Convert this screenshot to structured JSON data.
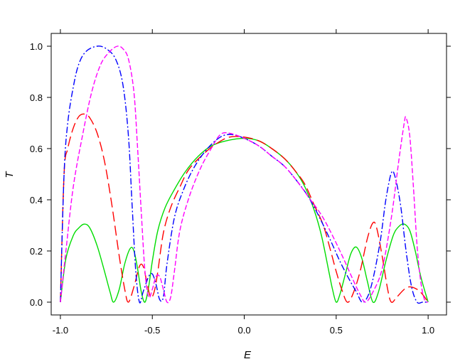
{
  "chart_data": {
    "type": "line",
    "title": "",
    "xlabel": "E",
    "ylabel": "T",
    "xlim": [
      -1.05,
      1.1
    ],
    "ylim": [
      -0.05,
      1.05
    ],
    "xticks": [
      -1.0,
      -0.5,
      0.0,
      0.5,
      1.0
    ],
    "xtick_labels": [
      "-1.0",
      "-0.5",
      "0.0",
      "0.5",
      "1.0"
    ],
    "yticks": [
      0.0,
      0.2,
      0.4,
      0.6,
      0.8,
      1.0
    ],
    "ytick_labels": [
      "0.0",
      "0.2",
      "0.4",
      "0.6",
      "0.8",
      "1.0"
    ],
    "grid": false,
    "legend": "none",
    "series": [
      {
        "color": "#00dd00",
        "dash": "solid",
        "points": [
          [
            -1.0,
            0.0
          ],
          [
            -0.97,
            0.17
          ],
          [
            -0.93,
            0.26
          ],
          [
            -0.9,
            0.29
          ],
          [
            -0.87,
            0.305
          ],
          [
            -0.84,
            0.29
          ],
          [
            -0.8,
            0.22
          ],
          [
            -0.76,
            0.12
          ],
          [
            -0.73,
            0.04
          ],
          [
            -0.71,
            0.0
          ],
          [
            -0.68,
            0.05
          ],
          [
            -0.65,
            0.15
          ],
          [
            -0.62,
            0.21
          ],
          [
            -0.6,
            0.2
          ],
          [
            -0.58,
            0.13
          ],
          [
            -0.56,
            0.04
          ],
          [
            -0.54,
            0.0
          ],
          [
            -0.52,
            0.06
          ],
          [
            -0.5,
            0.16
          ],
          [
            -0.47,
            0.28
          ],
          [
            -0.43,
            0.37
          ],
          [
            -0.38,
            0.44
          ],
          [
            -0.32,
            0.51
          ],
          [
            -0.25,
            0.57
          ],
          [
            -0.18,
            0.61
          ],
          [
            -0.1,
            0.63
          ],
          [
            0.0,
            0.64
          ],
          [
            0.08,
            0.63
          ],
          [
            0.15,
            0.6
          ],
          [
            0.22,
            0.56
          ],
          [
            0.28,
            0.51
          ],
          [
            0.33,
            0.45
          ],
          [
            0.38,
            0.36
          ],
          [
            0.42,
            0.26
          ],
          [
            0.46,
            0.12
          ],
          [
            0.48,
            0.05
          ],
          [
            0.5,
            0.0
          ],
          [
            0.52,
            0.03
          ],
          [
            0.55,
            0.11
          ],
          [
            0.58,
            0.19
          ],
          [
            0.61,
            0.215
          ],
          [
            0.64,
            0.17
          ],
          [
            0.67,
            0.08
          ],
          [
            0.7,
            0.0
          ],
          [
            0.73,
            0.04
          ],
          [
            0.77,
            0.16
          ],
          [
            0.81,
            0.26
          ],
          [
            0.84,
            0.295
          ],
          [
            0.87,
            0.305
          ],
          [
            0.9,
            0.28
          ],
          [
            0.93,
            0.2
          ],
          [
            0.96,
            0.1
          ],
          [
            1.0,
            0.0
          ]
        ]
      },
      {
        "color": "#ff0000",
        "dash": "long-dash",
        "points": [
          [
            -1.0,
            0.0
          ],
          [
            -0.98,
            0.5
          ],
          [
            -0.96,
            0.6
          ],
          [
            -0.93,
            0.68
          ],
          [
            -0.9,
            0.725
          ],
          [
            -0.87,
            0.735
          ],
          [
            -0.84,
            0.72
          ],
          [
            -0.8,
            0.66
          ],
          [
            -0.76,
            0.55
          ],
          [
            -0.72,
            0.38
          ],
          [
            -0.68,
            0.18
          ],
          [
            -0.65,
            0.05
          ],
          [
            -0.63,
            0.0
          ],
          [
            -0.6,
            0.06
          ],
          [
            -0.57,
            0.14
          ],
          [
            -0.55,
            0.14
          ],
          [
            -0.53,
            0.08
          ],
          [
            -0.51,
            0.02
          ],
          [
            -0.49,
            0.04
          ],
          [
            -0.47,
            0.12
          ],
          [
            -0.44,
            0.27
          ],
          [
            -0.4,
            0.37
          ],
          [
            -0.35,
            0.45
          ],
          [
            -0.3,
            0.52
          ],
          [
            -0.22,
            0.58
          ],
          [
            -0.15,
            0.62
          ],
          [
            -0.08,
            0.645
          ],
          [
            0.0,
            0.645
          ],
          [
            0.08,
            0.63
          ],
          [
            0.15,
            0.6
          ],
          [
            0.22,
            0.56
          ],
          [
            0.28,
            0.51
          ],
          [
            0.33,
            0.46
          ],
          [
            0.38,
            0.38
          ],
          [
            0.43,
            0.3
          ],
          [
            0.47,
            0.2
          ],
          [
            0.5,
            0.12
          ],
          [
            0.53,
            0.05
          ],
          [
            0.56,
            0.0
          ],
          [
            0.59,
            0.03
          ],
          [
            0.63,
            0.12
          ],
          [
            0.67,
            0.25
          ],
          [
            0.7,
            0.31
          ],
          [
            0.72,
            0.29
          ],
          [
            0.75,
            0.18
          ],
          [
            0.78,
            0.05
          ],
          [
            0.8,
            0.0
          ],
          [
            0.83,
            0.02
          ],
          [
            0.87,
            0.05
          ],
          [
            0.9,
            0.06
          ],
          [
            0.94,
            0.05
          ],
          [
            0.97,
            0.03
          ],
          [
            1.0,
            0.0
          ]
        ]
      },
      {
        "color": "#0000ff",
        "dash": "dash-dot",
        "points": [
          [
            -1.0,
            0.0
          ],
          [
            -0.98,
            0.5
          ],
          [
            -0.96,
            0.7
          ],
          [
            -0.93,
            0.84
          ],
          [
            -0.9,
            0.93
          ],
          [
            -0.86,
            0.98
          ],
          [
            -0.8,
            1.0
          ],
          [
            -0.75,
            0.99
          ],
          [
            -0.7,
            0.95
          ],
          [
            -0.66,
            0.85
          ],
          [
            -0.63,
            0.65
          ],
          [
            -0.61,
            0.38
          ],
          [
            -0.59,
            0.12
          ],
          [
            -0.57,
            0.0
          ],
          [
            -0.55,
            0.04
          ],
          [
            -0.52,
            0.1
          ],
          [
            -0.5,
            0.11
          ],
          [
            -0.48,
            0.07
          ],
          [
            -0.46,
            0.01
          ],
          [
            -0.44,
            0.02
          ],
          [
            -0.42,
            0.15
          ],
          [
            -0.38,
            0.33
          ],
          [
            -0.33,
            0.44
          ],
          [
            -0.27,
            0.53
          ],
          [
            -0.2,
            0.6
          ],
          [
            -0.13,
            0.645
          ],
          [
            -0.07,
            0.655
          ],
          [
            0.0,
            0.64
          ],
          [
            0.08,
            0.61
          ],
          [
            0.15,
            0.57
          ],
          [
            0.22,
            0.53
          ],
          [
            0.29,
            0.47
          ],
          [
            0.35,
            0.41
          ],
          [
            0.41,
            0.33
          ],
          [
            0.47,
            0.24
          ],
          [
            0.52,
            0.16
          ],
          [
            0.57,
            0.09
          ],
          [
            0.61,
            0.04
          ],
          [
            0.64,
            0.0
          ],
          [
            0.67,
            0.02
          ],
          [
            0.7,
            0.09
          ],
          [
            0.74,
            0.24
          ],
          [
            0.77,
            0.4
          ],
          [
            0.8,
            0.505
          ],
          [
            0.82,
            0.49
          ],
          [
            0.85,
            0.38
          ],
          [
            0.88,
            0.2
          ],
          [
            0.91,
            0.06
          ],
          [
            0.94,
            0.0
          ],
          [
            0.97,
            0.0
          ],
          [
            1.0,
            0.0
          ]
        ]
      },
      {
        "color": "#ff00ff",
        "dash": "short-dash",
        "points": [
          [
            -1.0,
            0.0
          ],
          [
            -0.97,
            0.2
          ],
          [
            -0.93,
            0.45
          ],
          [
            -0.88,
            0.65
          ],
          [
            -0.83,
            0.82
          ],
          [
            -0.78,
            0.93
          ],
          [
            -0.73,
            0.98
          ],
          [
            -0.69,
            1.0
          ],
          [
            -0.66,
            0.99
          ],
          [
            -0.63,
            0.95
          ],
          [
            -0.6,
            0.82
          ],
          [
            -0.58,
            0.6
          ],
          [
            -0.56,
            0.35
          ],
          [
            -0.54,
            0.12
          ],
          [
            -0.52,
            0.02
          ],
          [
            -0.5,
            0.05
          ],
          [
            -0.48,
            0.1
          ],
          [
            -0.46,
            0.1
          ],
          [
            -0.44,
            0.05
          ],
          [
            -0.42,
            0.0
          ],
          [
            -0.4,
            0.02
          ],
          [
            -0.38,
            0.12
          ],
          [
            -0.35,
            0.28
          ],
          [
            -0.3,
            0.41
          ],
          [
            -0.24,
            0.52
          ],
          [
            -0.18,
            0.6
          ],
          [
            -0.13,
            0.655
          ],
          [
            -0.08,
            0.66
          ],
          [
            0.0,
            0.64
          ],
          [
            0.08,
            0.61
          ],
          [
            0.15,
            0.57
          ],
          [
            0.22,
            0.53
          ],
          [
            0.29,
            0.47
          ],
          [
            0.35,
            0.41
          ],
          [
            0.42,
            0.34
          ],
          [
            0.48,
            0.26
          ],
          [
            0.54,
            0.17
          ],
          [
            0.59,
            0.09
          ],
          [
            0.63,
            0.03
          ],
          [
            0.66,
            0.0
          ],
          [
            0.7,
            0.04
          ],
          [
            0.75,
            0.13
          ],
          [
            0.8,
            0.33
          ],
          [
            0.84,
            0.55
          ],
          [
            0.87,
            0.7
          ],
          [
            0.88,
            0.72
          ],
          [
            0.9,
            0.65
          ],
          [
            0.92,
            0.45
          ],
          [
            0.94,
            0.22
          ],
          [
            0.96,
            0.08
          ],
          [
            0.98,
            0.01
          ],
          [
            1.0,
            0.0
          ]
        ]
      }
    ]
  }
}
